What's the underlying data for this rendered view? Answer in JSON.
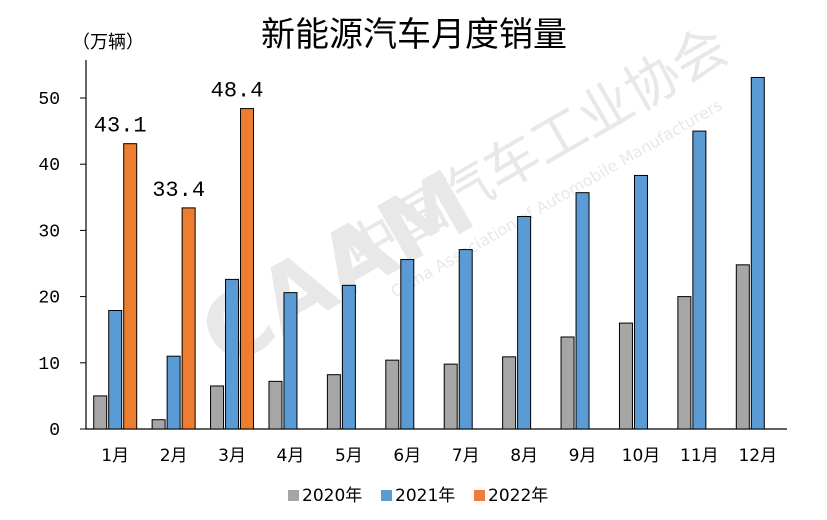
{
  "chart_data": {
    "type": "bar",
    "title": "新能源汽车月度销量",
    "unit_label": "（万辆）",
    "categories": [
      "1月",
      "2月",
      "3月",
      "4月",
      "5月",
      "6月",
      "7月",
      "8月",
      "9月",
      "10月",
      "11月",
      "12月"
    ],
    "series": [
      {
        "name": "2020年",
        "color": "#a6a6a6",
        "values": [
          5.0,
          1.4,
          6.5,
          7.2,
          8.2,
          10.4,
          9.8,
          10.9,
          13.9,
          16.0,
          20.0,
          24.8
        ]
      },
      {
        "name": "2021年",
        "color": "#5b9bd5",
        "values": [
          17.9,
          11.0,
          22.6,
          20.6,
          21.7,
          25.6,
          27.1,
          32.1,
          35.7,
          38.3,
          45.0,
          53.1
        ]
      },
      {
        "name": "2022年",
        "color": "#ed7d31",
        "values": [
          43.1,
          33.4,
          48.4,
          null,
          null,
          null,
          null,
          null,
          null,
          null,
          null,
          null
        ]
      }
    ],
    "data_labels": [
      {
        "series": 2,
        "index": 0,
        "text": "43.1"
      },
      {
        "series": 2,
        "index": 1,
        "text": "33.4"
      },
      {
        "series": 2,
        "index": 2,
        "text": "48.4"
      }
    ],
    "ylim": [
      0,
      55
    ],
    "yticks": [
      "0",
      "10",
      "20",
      "30",
      "40",
      "50"
    ],
    "legend_position": "bottom",
    "grid": false
  },
  "watermark": {
    "logo": "CAAM",
    "text_cn": "中国汽车工业协会",
    "text_en": "China Association of Automobile Manufacturers"
  }
}
